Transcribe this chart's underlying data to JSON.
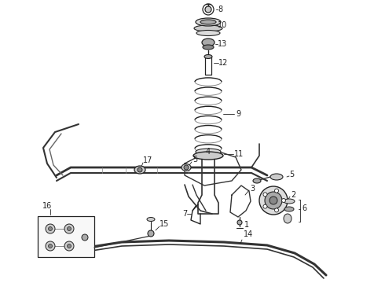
{
  "background_color": "#ffffff",
  "fig_width": 4.9,
  "fig_height": 3.6,
  "dpi": 100,
  "line_color": "#222222",
  "label_fontsize": 7,
  "line_width": 0.8,
  "gray1": "#cccccc",
  "gray2": "#aaaaaa",
  "gray3": "#888888",
  "gray4": "#666666",
  "gray5": "#dddddd",
  "dark": "#333333"
}
